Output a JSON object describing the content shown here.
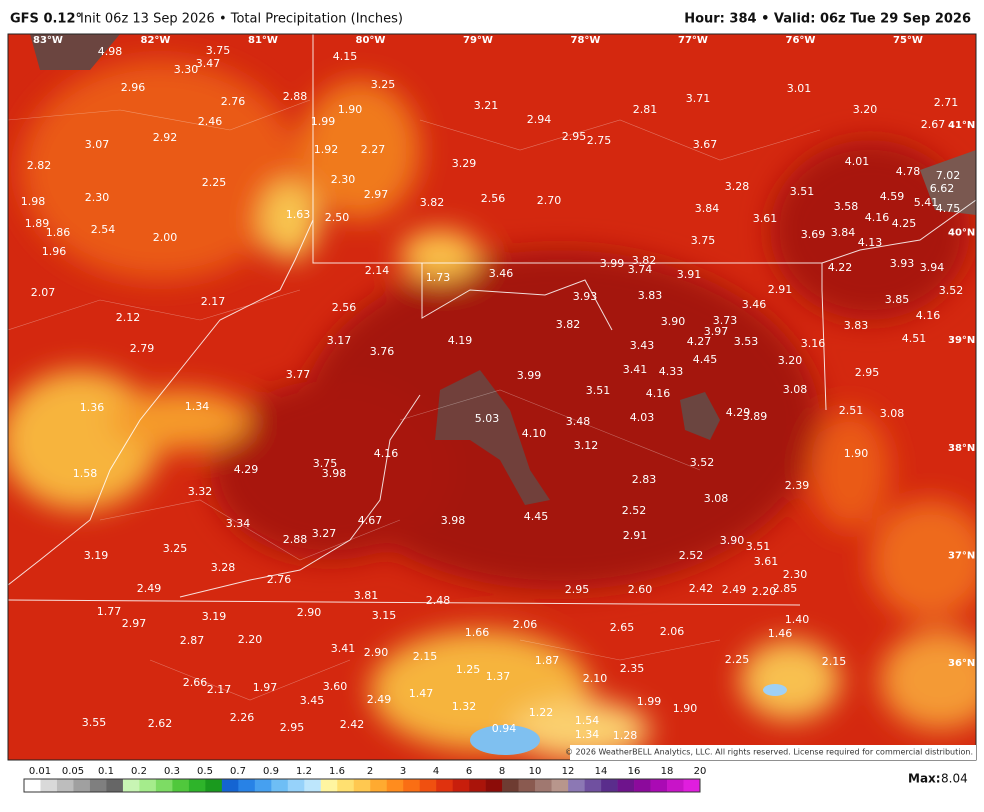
{
  "header": {
    "model": "GFS 0.12°",
    "title": "Init 06z 13 Sep 2026 • Total Precipitation (Inches)",
    "valid": "Hour: 384 • Valid: 06z Tue 29 Sep 2026"
  },
  "map": {
    "longitudes": [
      "83°W",
      "82°W",
      "81°W",
      "80°W",
      "79°W",
      "78°W",
      "77°W",
      "76°W",
      "75°W"
    ],
    "latitudes": [
      "41°N",
      "40°N",
      "39°N",
      "38°N",
      "37°N",
      "36°N"
    ],
    "values": [
      "4.98",
      "3.75",
      "3.30",
      "3.47",
      "4.15",
      "2.96",
      "3.25",
      "2.76",
      "2.88",
      "3.21",
      "2.81",
      "3.71",
      "3.01",
      "3.20",
      "2.71",
      "1.90",
      "1.99",
      "2.46",
      "2.94",
      "2.67",
      "3.07",
      "2.92",
      "2.95",
      "2.75",
      "3.67",
      "1.92",
      "2.27",
      "2.82",
      "3.29",
      "4.01",
      "4.78",
      "7.02",
      "2.25",
      "2.30",
      "3.28",
      "3.51",
      "6.62",
      "1.98",
      "2.30",
      "2.97",
      "3.82",
      "2.56",
      "2.70",
      "4.59",
      "5.41",
      "3.58",
      "4.75",
      "3.84",
      "1.63",
      "1.89",
      "1.86",
      "2.54",
      "2.00",
      "2.50",
      "3.61",
      "4.16",
      "4.25",
      "3.69",
      "3.84",
      "4.13",
      "1.96",
      "3.75",
      "2.14",
      "1.73",
      "3.46",
      "3.99",
      "3.82",
      "3.74",
      "3.91",
      "4.22",
      "3.93",
      "3.94",
      "2.07",
      "2.17",
      "3.83",
      "2.91",
      "3.46",
      "3.85",
      "3.52",
      "3.93",
      "2.56",
      "2.12",
      "3.82",
      "3.90",
      "3.73",
      "3.97",
      "4.16",
      "3.83",
      "3.17",
      "4.19",
      "3.76",
      "3.43",
      "4.27",
      "3.53",
      "3.16",
      "4.51",
      "2.79",
      "4.45",
      "3.20",
      "3.41",
      "4.33",
      "3.77",
      "3.99",
      "2.95",
      "3.51",
      "4.16",
      "3.08",
      "1.36",
      "1.34",
      "4.03",
      "4.29",
      "3.89",
      "2.51",
      "3.08",
      "5.03",
      "3.48",
      "4.10",
      "3.12",
      "4.16",
      "1.90",
      "3.75",
      "3.98",
      "3.52",
      "4.29",
      "1.58",
      "2.83",
      "2.39",
      "3.32",
      "3.08",
      "4.67",
      "3.98",
      "4.45",
      "2.52",
      "3.34",
      "3.27",
      "2.88",
      "2.91",
      "3.90",
      "3.51",
      "3.25",
      "3.19",
      "2.52",
      "3.61",
      "3.28",
      "2.76",
      "2.30",
      "2.49",
      "3.81",
      "2.95",
      "2.60",
      "2.42",
      "2.49",
      "2.20",
      "2.85",
      "2.48",
      "1.77",
      "2.97",
      "3.19",
      "2.90",
      "3.15",
      "1.66",
      "2.06",
      "2.65",
      "2.06",
      "1.40",
      "1.46",
      "2.87",
      "2.20",
      "3.41",
      "2.90",
      "2.15",
      "2.25",
      "2.15",
      "1.25",
      "1.37",
      "1.87",
      "2.35",
      "2.66",
      "2.17",
      "1.97",
      "3.60",
      "1.47",
      "2.10",
      "3.45",
      "2.49",
      "1.32",
      "1.99",
      "1.90",
      "3.55",
      "2.62",
      "2.26",
      "2.95",
      "2.42",
      "1.22",
      "1.54",
      "0.94",
      "1.34",
      "1.28"
    ],
    "copyright": "© 2026 WeatherBELL Analytics, LLC. All rights reserved. License required for commercial distribution."
  },
  "legend": {
    "labels": [
      "0.01",
      "0.05",
      "0.1",
      "0.2",
      "0.3",
      "0.5",
      "0.7",
      "0.9",
      "1.2",
      "1.6",
      "2",
      "3",
      "4",
      "6",
      "8",
      "10",
      "12",
      "14",
      "16",
      "18",
      "20"
    ],
    "colors": [
      "#ffffff",
      "#d9d9d9",
      "#bdbdbd",
      "#a0a0a0",
      "#7f7f7f",
      "#666666",
      "#c8f5b4",
      "#a5ec8c",
      "#7ddc64",
      "#50c83c",
      "#2eb42a",
      "#1a9a1e",
      "#1464d2",
      "#2882e6",
      "#46a0f0",
      "#6ebef5",
      "#96d2fa",
      "#bde6fc",
      "#fff5a0",
      "#ffe070",
      "#ffc850",
      "#ffaa30",
      "#ff8c1e",
      "#fa6e14",
      "#f05010",
      "#e0320e",
      "#c81e0c",
      "#aa140a",
      "#8c0c08",
      "#6e3c32",
      "#8a5a50",
      "#a07870",
      "#b8968c",
      "#8c78b4",
      "#7050a0",
      "#5a2d8c",
      "#6e148c",
      "#8c0a9c",
      "#aa0ab4",
      "#c814c8",
      "#e01ede"
    ]
  },
  "max": {
    "label": "Max:",
    "value": "8.04"
  }
}
